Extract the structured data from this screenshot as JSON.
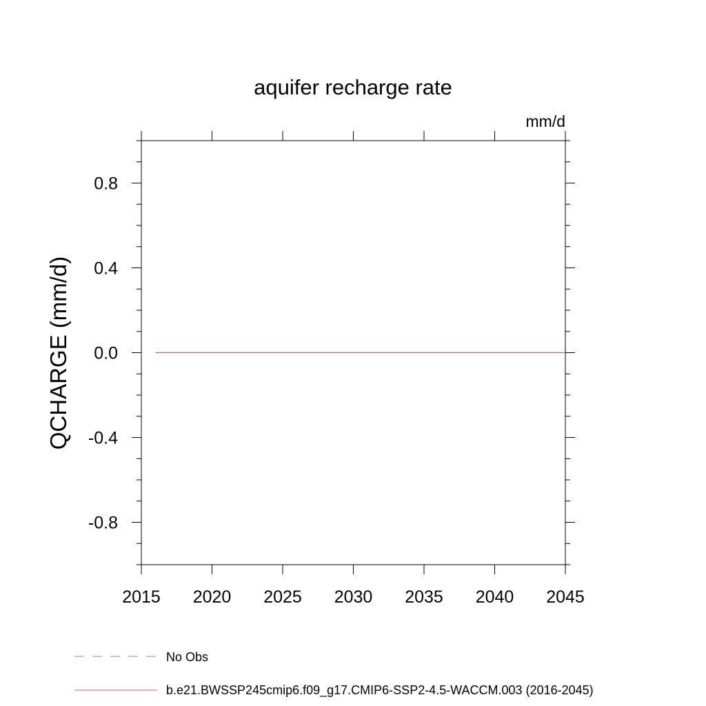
{
  "chart_data": {
    "type": "line",
    "title": "aquifer recharge rate",
    "units": "mm/d",
    "ylabel": "QCHARGE  (mm/d)",
    "xlabel": "",
    "xlim": [
      2015,
      2045
    ],
    "ylim": [
      -1.0,
      1.0
    ],
    "x_ticks": [
      2015,
      2020,
      2025,
      2030,
      2035,
      2040,
      2045
    ],
    "x_tick_labels": [
      "2015",
      "2020",
      "2025",
      "2030",
      "2035",
      "2040",
      "2045"
    ],
    "y_ticks": [
      0.8,
      0.4,
      0.0,
      -0.4,
      -0.8
    ],
    "y_tick_labels": [
      "0.8",
      "0.4",
      "0.0",
      "-0.4",
      "-0.8"
    ],
    "grid": false,
    "legend_placement": "bottom",
    "series": [
      {
        "name": "No Obs",
        "color": "#8a7fc0",
        "style": "dashed",
        "x": [],
        "y": []
      },
      {
        "name": "b.e21.BWSSP245cmip6.f09_g17.CMIP6-SSP2-4.5-WACCM.003 (2016-2045)",
        "color": "#e05a5a",
        "style": "solid",
        "x": [
          2016,
          2045
        ],
        "y": [
          0.0,
          0.0
        ]
      }
    ]
  }
}
